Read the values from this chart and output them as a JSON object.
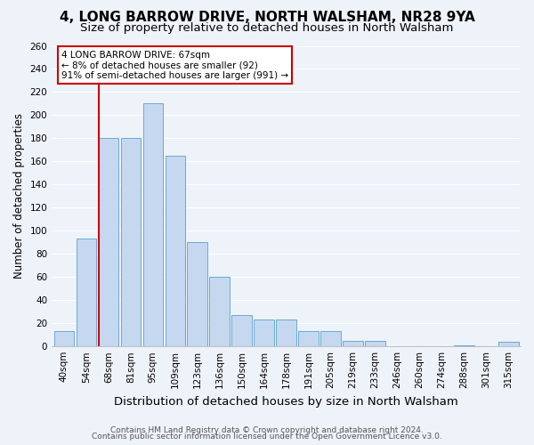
{
  "title": "4, LONG BARROW DRIVE, NORTH WALSHAM, NR28 9YA",
  "subtitle": "Size of property relative to detached houses in North Walsham",
  "xlabel": "Distribution of detached houses by size in North Walsham",
  "ylabel": "Number of detached properties",
  "bar_labels": [
    "40sqm",
    "54sqm",
    "68sqm",
    "81sqm",
    "95sqm",
    "109sqm",
    "123sqm",
    "136sqm",
    "150sqm",
    "164sqm",
    "178sqm",
    "191sqm",
    "205sqm",
    "219sqm",
    "233sqm",
    "246sqm",
    "260sqm",
    "274sqm",
    "288sqm",
    "301sqm",
    "315sqm"
  ],
  "bar_values": [
    13,
    93,
    180,
    180,
    210,
    165,
    90,
    60,
    27,
    23,
    23,
    13,
    13,
    5,
    5,
    0,
    0,
    0,
    1,
    0,
    4
  ],
  "bar_color": "#c5d8f0",
  "bar_edge_color": "#6aaad4",
  "highlight_bar_index": 2,
  "highlight_color": "#cc0000",
  "ylim": [
    0,
    260
  ],
  "yticks": [
    0,
    20,
    40,
    60,
    80,
    100,
    120,
    140,
    160,
    180,
    200,
    220,
    240,
    260
  ],
  "annotation_title": "4 LONG BARROW DRIVE: 67sqm",
  "annotation_line1": "← 8% of detached houses are smaller (92)",
  "annotation_line2": "91% of semi-detached houses are larger (991) →",
  "footer1": "Contains HM Land Registry data © Crown copyright and database right 2024.",
  "footer2": "Contains public sector information licensed under the Open Government Licence v3.0.",
  "bg_color": "#eef2f9",
  "grid_color": "#ffffff",
  "title_fontsize": 11,
  "subtitle_fontsize": 9.5,
  "xlabel_fontsize": 9.5,
  "ylabel_fontsize": 8.5,
  "tick_fontsize": 7.5,
  "footer_fontsize": 6.5,
  "ann_fontsize": 7.5
}
